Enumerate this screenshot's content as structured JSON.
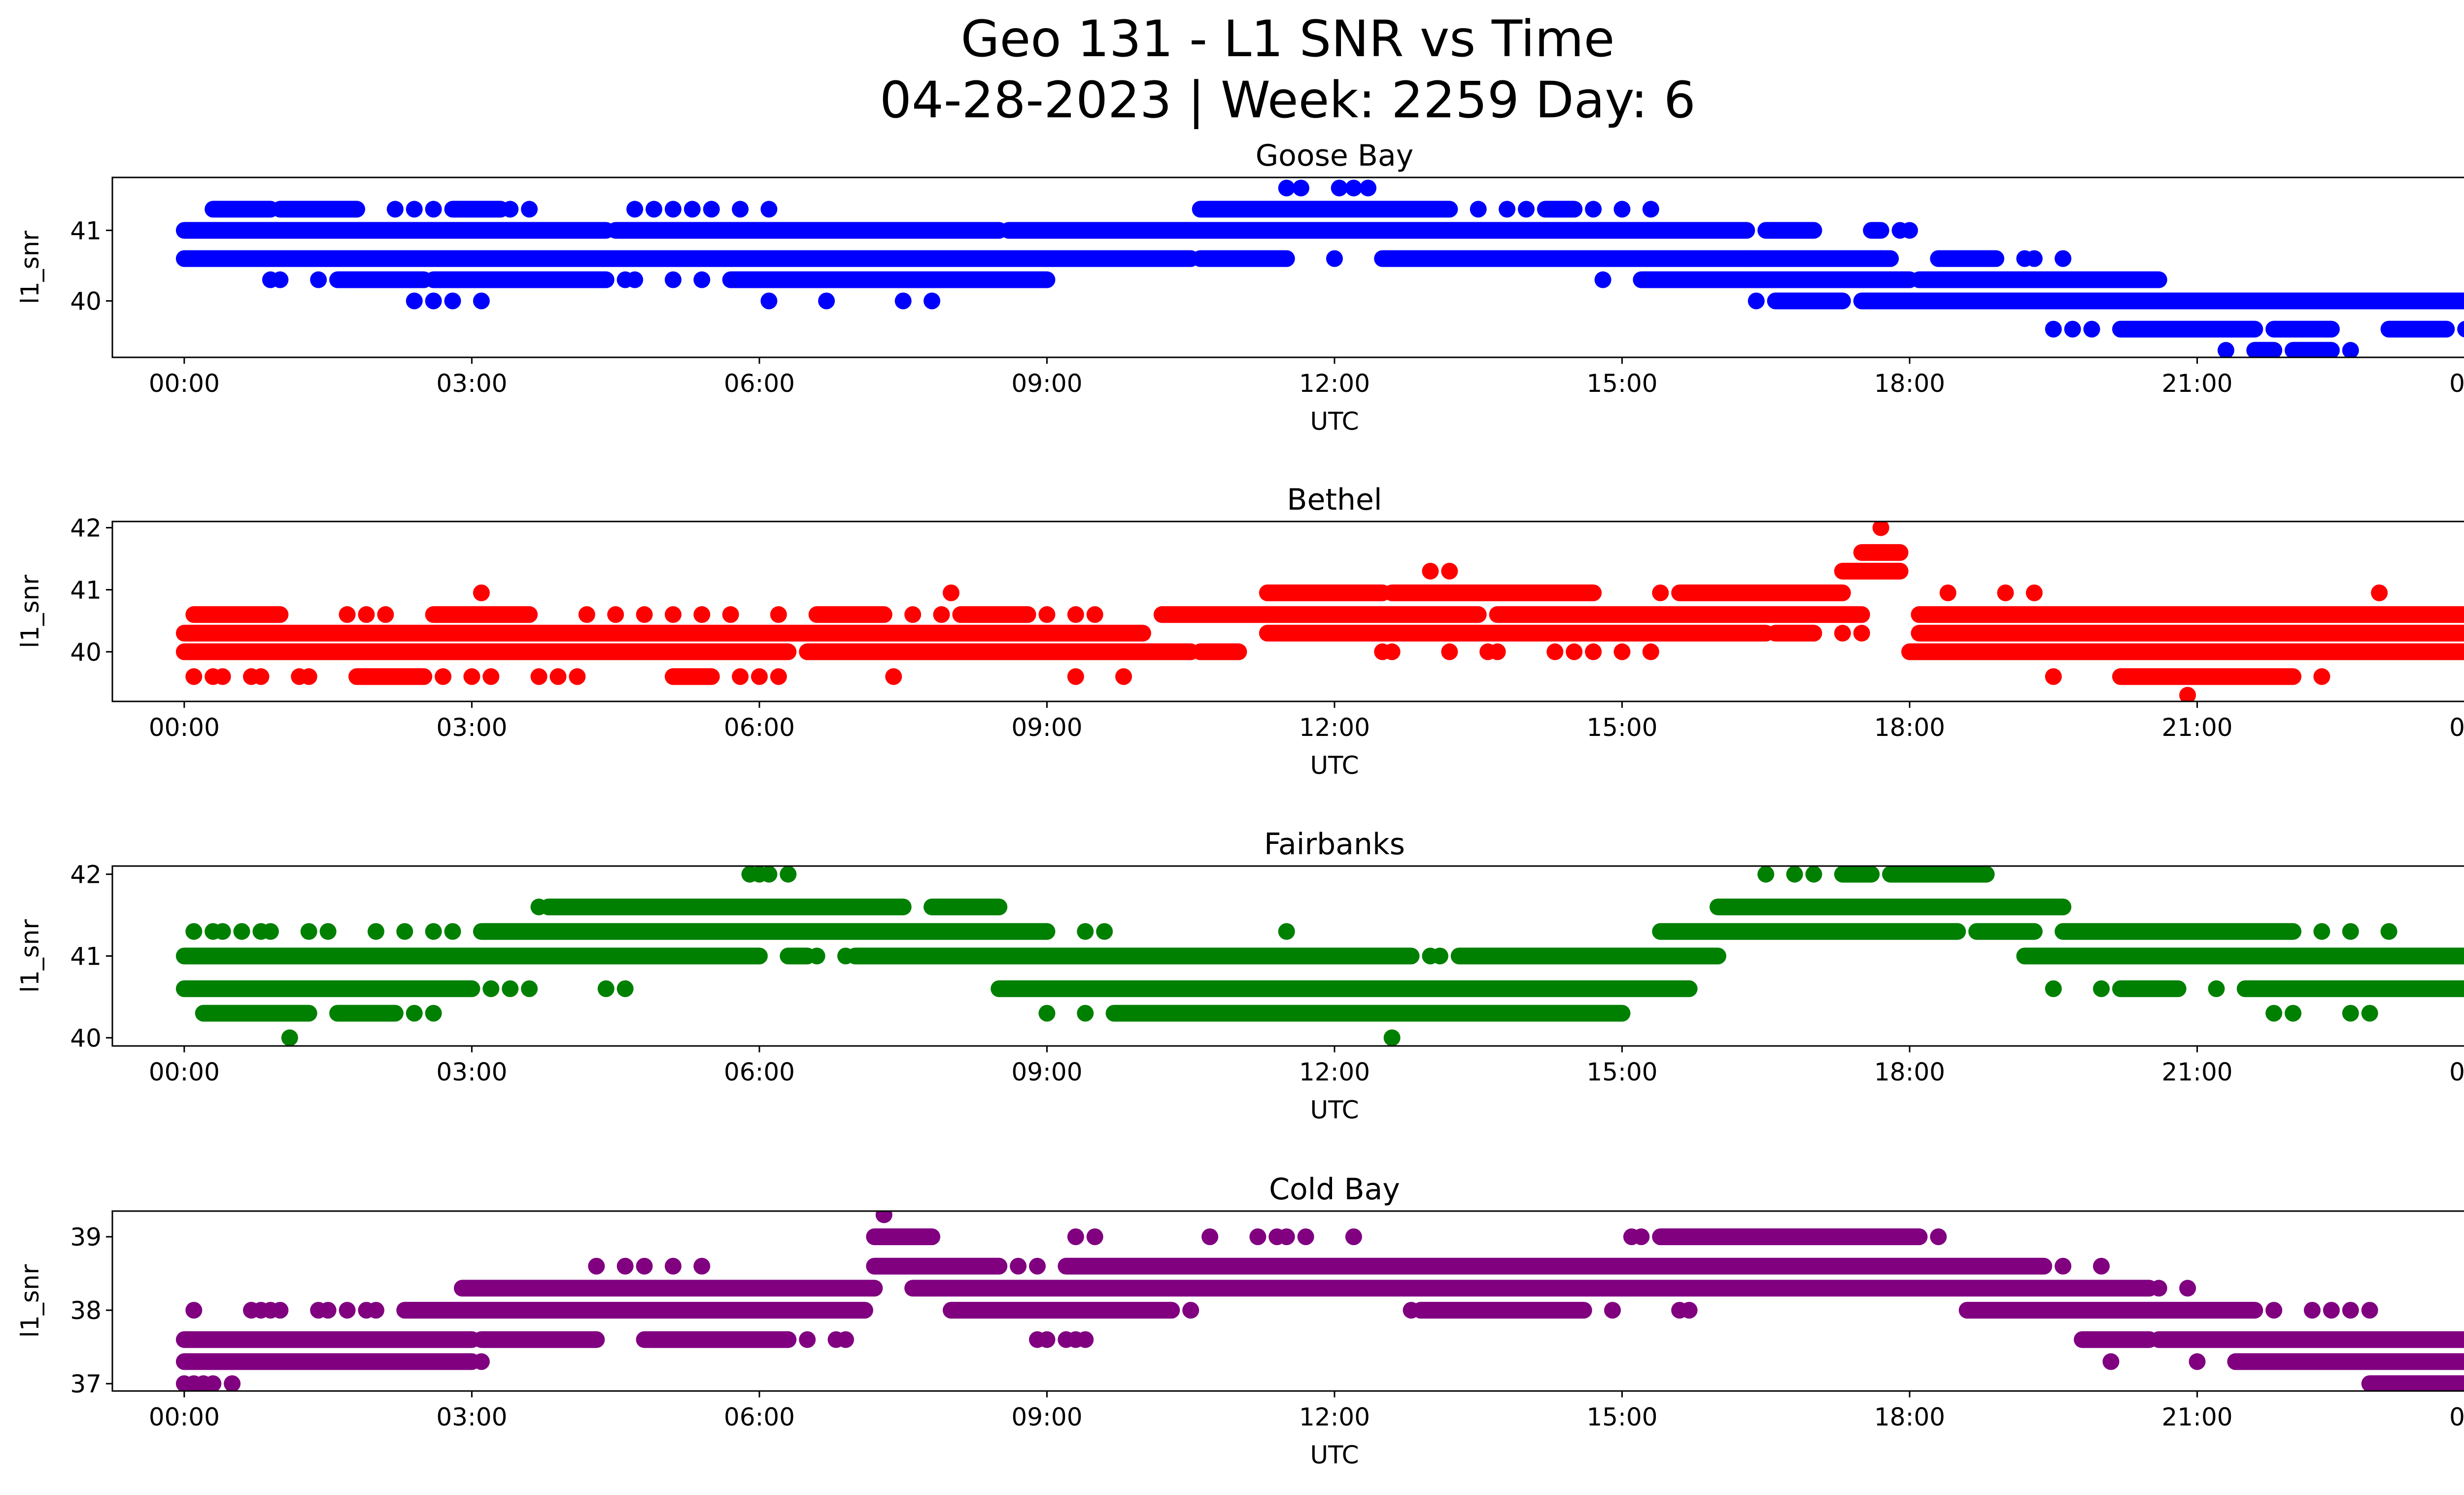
{
  "title": {
    "line1": "Geo 131 - L1 SNR vs Time",
    "line2": "04-28-2023 | Week: 2259 Day: 6"
  },
  "chart_data": [
    {
      "type": "scatter",
      "title": "Goose Bay",
      "xlabel": "UTC",
      "ylabel": "l1_snr",
      "color": "#0000ff",
      "xlim": [
        -0.75,
        24.75
      ],
      "ylim": [
        39.2,
        41.75
      ],
      "x_ticks": [
        "00:00",
        "03:00",
        "06:00",
        "09:00",
        "12:00",
        "15:00",
        "18:00",
        "21:00",
        "00:00"
      ],
      "y_ticks": [
        40,
        41
      ],
      "points": [
        {
          "y": 41.0,
          "runs": [
            [
              0.0,
              4.4
            ],
            [
              4.5,
              8.5
            ],
            [
              8.6,
              16.3
            ],
            [
              16.5,
              17.0
            ],
            [
              17.6,
              17.7
            ]
          ],
          "dots": [
            17.9,
            18.0
          ]
        },
        {
          "y": 40.6,
          "runs": [
            [
              0.0,
              10.5
            ],
            [
              10.6,
              11.5
            ],
            [
              12.5,
              17.8
            ],
            [
              18.3,
              18.9
            ]
          ],
          "dots": [
            12.0,
            16.3,
            17.7,
            19.2,
            19.3,
            19.6
          ]
        },
        {
          "y": 40.3,
          "runs": [
            [
              1.6,
              2.5
            ],
            [
              2.6,
              4.4
            ],
            [
              5.7,
              9.0
            ],
            [
              15.2,
              18.0
            ],
            [
              18.1,
              20.6
            ]
          ],
          "dots": [
            0.9,
            1.0,
            1.4,
            4.6,
            4.7,
            5.1,
            5.4,
            14.8
          ]
        },
        {
          "y": 40.0,
          "runs": [
            [
              16.6,
              17.3
            ],
            [
              17.5,
              24.0
            ]
          ],
          "dots": [
            2.4,
            2.6,
            2.8,
            3.1,
            6.1,
            6.7,
            7.5,
            7.8,
            16.4
          ]
        },
        {
          "y": 39.6,
          "runs": [
            [
              20.2,
              21.6
            ],
            [
              21.8,
              22.4
            ],
            [
              23.0,
              23.6
            ]
          ],
          "dots": [
            19.5,
            19.7,
            19.9,
            23.8,
            24.0
          ]
        },
        {
          "y": 39.3,
          "runs": [
            [
              21.6,
              21.8
            ],
            [
              22.0,
              22.4
            ]
          ],
          "dots": [
            21.3,
            22.6
          ]
        },
        {
          "y": 41.3,
          "runs": [
            [
              0.3,
              0.9
            ],
            [
              1.0,
              1.8
            ],
            [
              2.8,
              3.3
            ],
            [
              10.6,
              13.2
            ],
            [
              14.2,
              14.5
            ]
          ],
          "dots": [
            2.2,
            2.4,
            2.6,
            3.4,
            3.6,
            4.7,
            4.9,
            5.1,
            5.3,
            5.5,
            5.8,
            6.1,
            13.5,
            13.8,
            14.0,
            14.7,
            15.0,
            15.3
          ]
        },
        {
          "y": 41.6,
          "runs": [],
          "dots": [
            11.5,
            11.65,
            12.05,
            12.2,
            12.35
          ]
        }
      ]
    },
    {
      "type": "scatter",
      "title": "Bethel",
      "xlabel": "UTC",
      "ylabel": "l1_snr",
      "color": "#ff0000",
      "xlim": [
        -0.75,
        24.75
      ],
      "ylim": [
        39.2,
        42.1
      ],
      "x_ticks": [
        "00:00",
        "03:00",
        "06:00",
        "09:00",
        "12:00",
        "15:00",
        "18:00",
        "21:00",
        "00:00"
      ],
      "y_ticks": [
        40,
        41,
        42
      ],
      "points": [
        {
          "y": 40.0,
          "runs": [
            [
              0.0,
              6.3
            ],
            [
              6.5,
              10.5
            ],
            [
              10.6,
              11.0
            ],
            [
              18.0,
              24.0
            ]
          ],
          "dots": [
            12.5,
            12.6,
            13.2,
            13.6,
            13.7,
            14.3,
            14.5,
            14.7,
            15.0,
            15.3
          ]
        },
        {
          "y": 40.3,
          "runs": [
            [
              0.0,
              10.0
            ],
            [
              11.3,
              16.5
            ],
            [
              16.6,
              17.0
            ],
            [
              18.1,
              24.0
            ]
          ],
          "dots": [
            17.3,
            17.5
          ]
        },
        {
          "y": 40.6,
          "runs": [
            [
              0.1,
              1.0
            ],
            [
              2.6,
              3.6
            ],
            [
              6.6,
              7.3
            ],
            [
              8.1,
              8.8
            ],
            [
              10.2,
              13.5
            ],
            [
              13.7,
              17.5
            ],
            [
              18.1,
              24.0
            ]
          ],
          "dots": [
            1.7,
            1.9,
            2.1,
            4.2,
            4.5,
            4.8,
            5.1,
            5.4,
            5.7,
            6.2,
            7.6,
            7.9,
            9.0,
            9.3,
            9.5
          ]
        },
        {
          "y": 40.95,
          "runs": [
            [
              11.3,
              12.5
            ],
            [
              12.6,
              14.7
            ],
            [
              15.6,
              17.3
            ]
          ],
          "dots": [
            3.1,
            8.0,
            15.4,
            18.4,
            19.0,
            19.3,
            22.9
          ]
        },
        {
          "y": 39.6,
          "runs": [
            [
              1.8,
              2.5
            ],
            [
              5.1,
              5.5
            ],
            [
              20.2,
              22.0
            ]
          ],
          "dots": [
            0.1,
            0.3,
            0.4,
            0.7,
            0.8,
            1.2,
            1.3,
            2.7,
            3.0,
            3.2,
            3.7,
            3.9,
            4.1,
            5.8,
            6.0,
            6.2,
            7.4,
            9.3,
            9.8,
            19.5,
            22.3
          ]
        },
        {
          "y": 41.3,
          "runs": [
            [
              17.3,
              17.9
            ]
          ],
          "dots": [
            13.0,
            13.2
          ]
        },
        {
          "y": 41.6,
          "runs": [
            [
              17.5,
              17.9
            ]
          ],
          "dots": []
        },
        {
          "y": 42.0,
          "runs": [],
          "dots": [
            17.7
          ]
        },
        {
          "y": 39.3,
          "runs": [],
          "dots": [
            20.9
          ]
        }
      ]
    },
    {
      "type": "scatter",
      "title": "Fairbanks",
      "xlabel": "UTC",
      "ylabel": "l1_snr",
      "color": "#008000",
      "xlim": [
        -0.75,
        24.75
      ],
      "ylim": [
        39.9,
        42.1
      ],
      "x_ticks": [
        "00:00",
        "03:00",
        "06:00",
        "09:00",
        "12:00",
        "15:00",
        "18:00",
        "21:00",
        "00:00"
      ],
      "y_ticks": [
        40,
        41,
        42
      ],
      "points": [
        {
          "y": 41.0,
          "runs": [
            [
              0.0,
              6.0
            ],
            [
              6.3,
              6.5
            ],
            [
              7.0,
              12.8
            ],
            [
              13.3,
              16.0
            ],
            [
              19.2,
              24.0
            ]
          ],
          "dots": [
            6.6,
            6.9,
            13.0,
            13.1
          ]
        },
        {
          "y": 40.6,
          "runs": [
            [
              0.0,
              3.0
            ],
            [
              8.5,
              15.7
            ],
            [
              20.2,
              20.8
            ],
            [
              21.5,
              24.0
            ]
          ],
          "dots": [
            3.2,
            3.4,
            3.6,
            4.4,
            4.6,
            19.5,
            20.0,
            21.2
          ]
        },
        {
          "y": 40.3,
          "runs": [
            [
              0.2,
              1.3
            ],
            [
              9.7,
              15.0
            ],
            [
              1.6,
              2.2
            ]
          ],
          "dots": [
            2.4,
            2.6,
            9.0,
            9.4,
            21.8,
            22.0,
            22.6,
            22.8
          ]
        },
        {
          "y": 41.3,
          "runs": [
            [
              3.1,
              9.0
            ],
            [
              15.4,
              18.5
            ],
            [
              18.7,
              19.3
            ],
            [
              19.6,
              22.0
            ]
          ],
          "dots": [
            0.1,
            0.3,
            0.4,
            0.6,
            0.8,
            0.9,
            1.3,
            1.5,
            2.0,
            2.3,
            2.6,
            2.8,
            9.4,
            9.6,
            11.5,
            22.3,
            22.6,
            23.0,
            23.9,
            24.0
          ]
        },
        {
          "y": 41.6,
          "runs": [
            [
              3.8,
              7.5
            ],
            [
              7.8,
              8.5
            ],
            [
              16.0,
              19.6
            ]
          ],
          "dots": [
            3.7
          ]
        },
        {
          "y": 42.0,
          "runs": [
            [
              17.3,
              17.6
            ],
            [
              17.8,
              18.8
            ]
          ],
          "dots": [
            5.9,
            6.0,
            6.1,
            6.3,
            16.5,
            16.8,
            17.0
          ]
        },
        {
          "y": 40.0,
          "runs": [],
          "dots": [
            1.1,
            12.6
          ]
        }
      ]
    },
    {
      "type": "scatter",
      "title": "Cold Bay",
      "xlabel": "UTC",
      "ylabel": "l1_snr",
      "color": "#800080",
      "xlim": [
        -0.75,
        24.75
      ],
      "ylim": [
        36.9,
        39.35
      ],
      "x_ticks": [
        "00:00",
        "03:00",
        "06:00",
        "09:00",
        "12:00",
        "15:00",
        "18:00",
        "21:00",
        "00:00"
      ],
      "y_ticks": [
        37,
        38,
        39
      ],
      "points": [
        {
          "y": 37.6,
          "runs": [
            [
              0.0,
              3.0
            ],
            [
              3.1,
              4.3
            ],
            [
              4.8,
              6.3
            ],
            [
              19.8,
              20.5
            ],
            [
              20.6,
              24.0
            ]
          ],
          "dots": [
            6.5,
            6.8,
            6.9,
            8.9,
            9.0,
            9.2,
            9.3,
            9.4
          ]
        },
        {
          "y": 37.3,
          "runs": [
            [
              0.0,
              3.0
            ],
            [
              21.4,
              24.0
            ]
          ],
          "dots": [
            3.1,
            20.1,
            21.0
          ]
        },
        {
          "y": 37.0,
          "runs": [
            [
              22.8,
              24.0
            ]
          ],
          "dots": [
            0.0,
            0.1,
            0.2,
            0.3,
            0.5
          ]
        },
        {
          "y": 38.0,
          "runs": [
            [
              2.3,
              7.1
            ],
            [
              8.0,
              10.3
            ],
            [
              12.9,
              14.6
            ],
            [
              18.6,
              21.6
            ]
          ],
          "dots": [
            0.1,
            0.7,
            0.8,
            0.9,
            1.0,
            1.4,
            1.5,
            1.7,
            1.9,
            2.0,
            10.5,
            12.8,
            14.9,
            15.6,
            15.7,
            21.8,
            22.2,
            22.4,
            22.6,
            22.8
          ]
        },
        {
          "y": 38.3,
          "runs": [
            [
              2.9,
              7.2
            ],
            [
              7.6,
              20.5
            ]
          ],
          "dots": [
            20.6,
            20.9
          ]
        },
        {
          "y": 38.6,
          "runs": [
            [
              7.2,
              8.5
            ],
            [
              9.2,
              19.4
            ]
          ],
          "dots": [
            4.3,
            4.6,
            4.8,
            5.1,
            5.4,
            8.7,
            8.9,
            19.6,
            20.0
          ]
        },
        {
          "y": 39.0,
          "runs": [
            [
              7.2,
              7.8
            ],
            [
              15.4,
              18.1
            ]
          ],
          "dots": [
            9.3,
            9.5,
            10.7,
            11.2,
            11.4,
            11.5,
            11.7,
            12.2,
            15.1,
            15.2,
            18.3
          ]
        },
        {
          "y": 39.3,
          "runs": [],
          "dots": [
            7.3
          ]
        }
      ]
    }
  ]
}
